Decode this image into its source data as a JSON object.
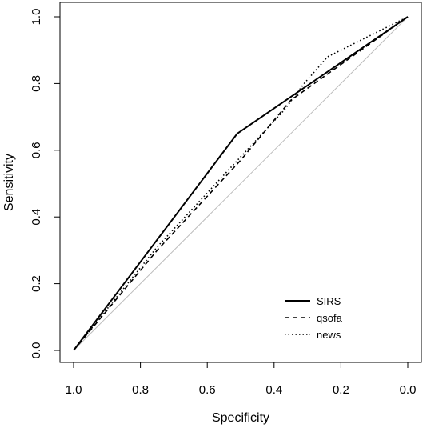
{
  "chart_data": {
    "type": "line",
    "xlabel": "Specificity",
    "ylabel": "Sensitivity",
    "xlim": [
      1.0,
      0.0
    ],
    "ylim": [
      0.0,
      1.0
    ],
    "x_reversed": true,
    "x_ticks": [
      "1.0",
      "0.8",
      "0.6",
      "0.4",
      "0.2",
      "0.0"
    ],
    "y_ticks": [
      "0.0",
      "0.2",
      "0.4",
      "0.6",
      "0.8",
      "1.0"
    ],
    "grid": false,
    "legend_position": "bottom-right",
    "reference_line": {
      "x": [
        1.0,
        0.0
      ],
      "y": [
        0.0,
        1.0
      ],
      "color": "#bdbdbd"
    },
    "series": [
      {
        "name": "SIRS",
        "style": "solid",
        "color": "#000000",
        "x": [
          1.0,
          0.51,
          0.0
        ],
        "y": [
          0.0,
          0.65,
          1.0
        ]
      },
      {
        "name": "qsofa",
        "style": "dashed",
        "color": "#000000",
        "x": [
          1.0,
          0.75,
          0.5,
          0.35,
          0.0
        ],
        "y": [
          0.0,
          0.3,
          0.57,
          0.75,
          1.0
        ]
      },
      {
        "name": "news",
        "style": "dotted",
        "color": "#000000",
        "x": [
          1.0,
          0.75,
          0.5,
          0.37,
          0.31,
          0.24,
          0.12,
          0.0
        ],
        "y": [
          0.0,
          0.31,
          0.58,
          0.72,
          0.8,
          0.88,
          0.94,
          1.0
        ]
      }
    ]
  }
}
